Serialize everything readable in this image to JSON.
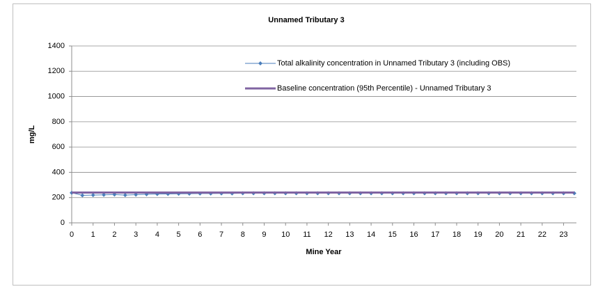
{
  "chart_data": {
    "type": "line",
    "title": "Unnamed Tributary 3",
    "xlabel": "Mine Year",
    "ylabel": "mg/L",
    "x": [
      0,
      0.5,
      1,
      1.5,
      2,
      2.5,
      3,
      3.5,
      4,
      4.5,
      5,
      5.5,
      6,
      6.5,
      7,
      7.5,
      8,
      8.5,
      9,
      9.5,
      10,
      10.5,
      11,
      11.5,
      12,
      12.5,
      13,
      13.5,
      14,
      14.5,
      15,
      15.5,
      16,
      16.5,
      17,
      17.5,
      18,
      18.5,
      19,
      19.5,
      20,
      20.5,
      21,
      21.5,
      22,
      22.5,
      23,
      23.5
    ],
    "series": [
      {
        "name": "Total alkalinity  concentration in Unnamed Tributary 3 (including OBS)",
        "color": "#4a7ebb",
        "marker": "diamond",
        "values": [
          238,
          218,
          220,
          222,
          224,
          220,
          223,
          226,
          228,
          229,
          230,
          231,
          232,
          232,
          233,
          233,
          234,
          234,
          234,
          234,
          234,
          234,
          234,
          234,
          234,
          234,
          234,
          234,
          234,
          234,
          234,
          234,
          234,
          234,
          234,
          234,
          234,
          234,
          234,
          234,
          234,
          234,
          234,
          234,
          234,
          234,
          234,
          234
        ]
      },
      {
        "name": "Baseline  concentration (95th Percentile) - Unnamed Tributary 3",
        "color": "#8064a2",
        "marker": "none",
        "x": [
          0,
          23.5
        ],
        "values": [
          240,
          240
        ]
      }
    ],
    "xlim": [
      0,
      23.6
    ],
    "xticks": [
      0,
      1,
      2,
      3,
      4,
      5,
      6,
      7,
      8,
      9,
      10,
      11,
      12,
      13,
      14,
      15,
      16,
      17,
      18,
      19,
      20,
      21,
      22,
      23
    ],
    "ylim": [
      0,
      1400
    ],
    "yticks": [
      0,
      200,
      400,
      600,
      800,
      1000,
      1200,
      1400
    ],
    "grid": true,
    "legend": "top-right"
  }
}
